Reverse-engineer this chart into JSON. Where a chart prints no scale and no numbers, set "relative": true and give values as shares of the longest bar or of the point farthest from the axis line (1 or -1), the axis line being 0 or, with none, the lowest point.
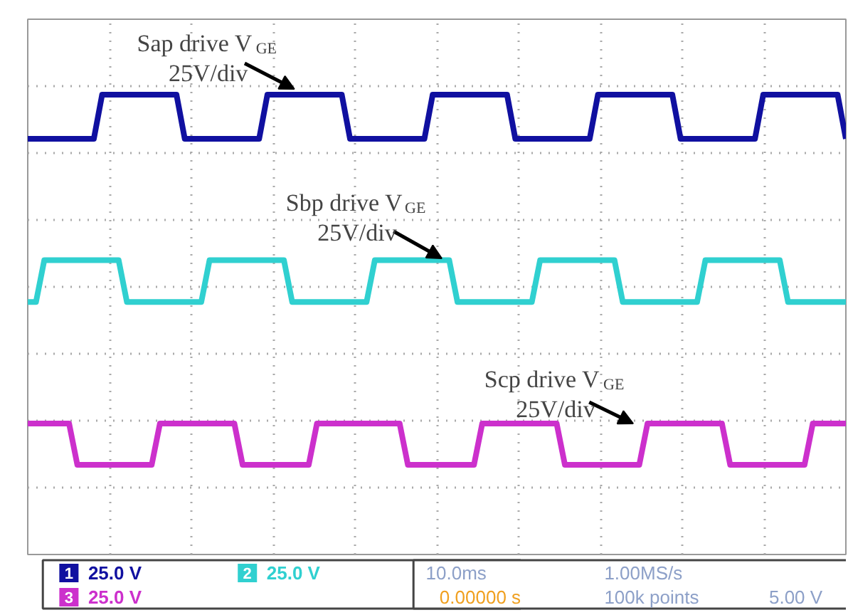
{
  "chart_data": {
    "type": "line",
    "relative": true,
    "categories": [
      null,
      null,
      null,
      null,
      null,
      null,
      null,
      null,
      null,
      null,
      null,
      null,
      null,
      null,
      null,
      null,
      null,
      null,
      null,
      null,
      null,
      null,
      null,
      null,
      null,
      null,
      null,
      null,
      null,
      null,
      null,
      null,
      null,
      null,
      null,
      null,
      null,
      null,
      null,
      null,
      null,
      null,
      null,
      null,
      null,
      null,
      null,
      null,
      null,
      null,
      null,
      null,
      null,
      null,
      null,
      null,
      null,
      null,
      null,
      null,
      null,
      null,
      null,
      null,
      null,
      null,
      null,
      null,
      null,
      null,
      null,
      null,
      null,
      null,
      null,
      null,
      null,
      null,
      null,
      null,
      null,
      null,
      null,
      null,
      null,
      null,
      null,
      null,
      null,
      null,
      null,
      null,
      null,
      null,
      null,
      null,
      null,
      null,
      null,
      null
    ],
    "tick_labels": false,
    "grid": true,
    "legend": "bottom left",
    "line_style": "solid",
    "series": [
      {
        "name": "1",
        "color": "#1010a0",
        "values": [
          0.904,
          0.904,
          0.904,
          0.904,
          0.904,
          0.904,
          0.904,
          0.904,
          0.904,
          1,
          1,
          1,
          1,
          1,
          1,
          1,
          1,
          1,
          1,
          0.904,
          0.904,
          0.904,
          0.904,
          0.904,
          0.904,
          0.904,
          0.904,
          0.904,
          0.904,
          1,
          1,
          1,
          1,
          1,
          1,
          1,
          1,
          1,
          1,
          0.904,
          0.904,
          0.904,
          0.904,
          0.904,
          0.904,
          0.904,
          0.904,
          0.904,
          0.904,
          1,
          1,
          1,
          1,
          1,
          1,
          1,
          1,
          1,
          1,
          0.904,
          0.904,
          0.904,
          0.904,
          0.904,
          0.904,
          0.904,
          0.904,
          0.904,
          0.904,
          1,
          1,
          1,
          1,
          1,
          1,
          1,
          1,
          1,
          1,
          0.904,
          0.904,
          0.904,
          0.904,
          0.904,
          0.904,
          0.904,
          0.904,
          0.904,
          0.904,
          1,
          1,
          1,
          1,
          1,
          1,
          1,
          1,
          1,
          1,
          0.904
        ]
      },
      {
        "name": "2",
        "color": "#30d0d0",
        "values": [
          0.549,
          0.549,
          0.64,
          0.64,
          0.64,
          0.64,
          0.64,
          0.64,
          0.64,
          0.64,
          0.64,
          0.64,
          0.549,
          0.549,
          0.549,
          0.549,
          0.549,
          0.549,
          0.549,
          0.549,
          0.549,
          0.549,
          0.64,
          0.64,
          0.64,
          0.64,
          0.64,
          0.64,
          0.64,
          0.64,
          0.64,
          0.64,
          0.549,
          0.549,
          0.549,
          0.549,
          0.549,
          0.549,
          0.549,
          0.549,
          0.549,
          0.549,
          0.64,
          0.64,
          0.64,
          0.64,
          0.64,
          0.64,
          0.64,
          0.64,
          0.64,
          0.64,
          0.549,
          0.549,
          0.549,
          0.549,
          0.549,
          0.549,
          0.549,
          0.549,
          0.549,
          0.549,
          0.64,
          0.64,
          0.64,
          0.64,
          0.64,
          0.64,
          0.64,
          0.64,
          0.64,
          0.64,
          0.549,
          0.549,
          0.549,
          0.549,
          0.549,
          0.549,
          0.549,
          0.549,
          0.549,
          0.549,
          0.64,
          0.64,
          0.64,
          0.64,
          0.64,
          0.64,
          0.64,
          0.64,
          0.64,
          0.64,
          0.549,
          0.549,
          0.549,
          0.549,
          0.549,
          0.549,
          0.549,
          0.549
        ]
      },
      {
        "name": "3",
        "color": "#cc30cc",
        "values": [
          0.285,
          0.285,
          0.285,
          0.285,
          0.285,
          0.285,
          0.195,
          0.195,
          0.195,
          0.195,
          0.195,
          0.195,
          0.195,
          0.195,
          0.195,
          0.195,
          0.285,
          0.285,
          0.285,
          0.285,
          0.285,
          0.285,
          0.285,
          0.285,
          0.285,
          0.285,
          0.195,
          0.195,
          0.195,
          0.195,
          0.195,
          0.195,
          0.195,
          0.195,
          0.195,
          0.285,
          0.285,
          0.285,
          0.285,
          0.285,
          0.285,
          0.285,
          0.285,
          0.285,
          0.285,
          0.285,
          0.195,
          0.195,
          0.195,
          0.195,
          0.195,
          0.195,
          0.195,
          0.195,
          0.195,
          0.285,
          0.285,
          0.285,
          0.285,
          0.285,
          0.285,
          0.285,
          0.285,
          0.285,
          0.285,
          0.195,
          0.195,
          0.195,
          0.195,
          0.195,
          0.195,
          0.195,
          0.195,
          0.195,
          0.195,
          0.285,
          0.285,
          0.285,
          0.285,
          0.285,
          0.285,
          0.285,
          0.285,
          0.285,
          0.285,
          0.195,
          0.195,
          0.195,
          0.195,
          0.195,
          0.195,
          0.195,
          0.195,
          0.195,
          0.195,
          0.285,
          0.285,
          0.285,
          0.285,
          0.285
        ]
      }
    ],
    "annotations": [
      "Sap drive V$_{GE}$\n25V/div",
      "Sbp drive V$_{GE}$\n25V/div",
      "Scp drive V$_{GE}$\n25V/div",
      "25.0 V",
      "25.0 V",
      "25.0 V",
      "10.0ms",
      "1.00MS/s",
      "0.00000 s",
      "100k points",
      "5.00 V"
    ]
  }
}
